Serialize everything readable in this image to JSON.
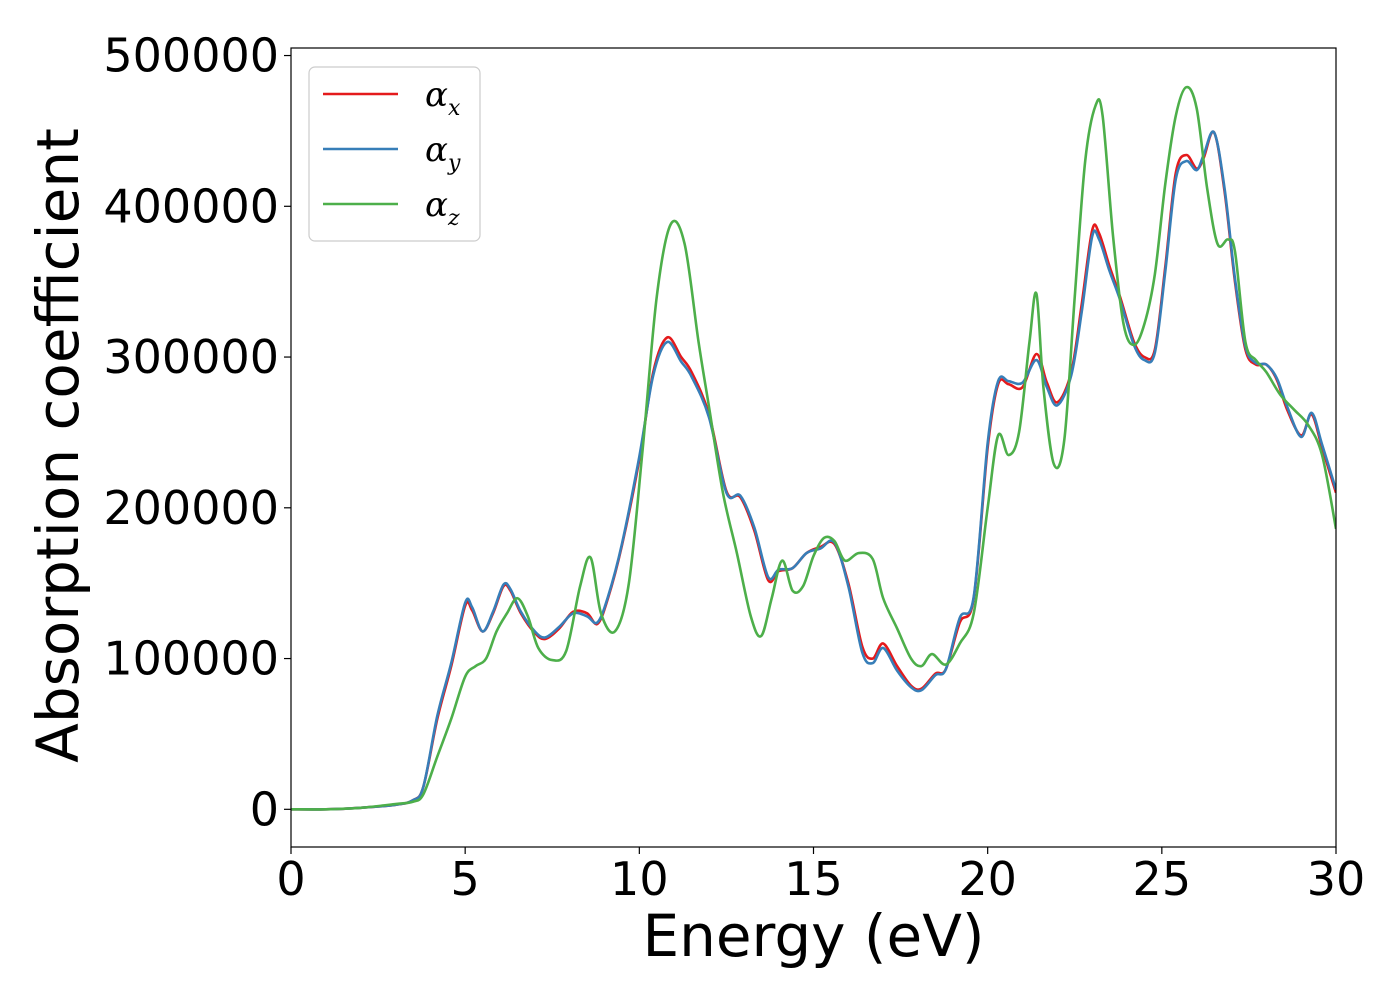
{
  "chart_data": {
    "type": "line",
    "xlabel": "Energy (eV)",
    "ylabel": "Absorption coefficient",
    "xlim": [
      0,
      30
    ],
    "ylim": [
      -25000,
      505000
    ],
    "xticks": [
      0,
      5,
      10,
      15,
      20,
      25,
      30
    ],
    "xtick_labels": [
      "0",
      "5",
      "10",
      "15",
      "20",
      "25",
      "30"
    ],
    "yticks": [
      0,
      100000,
      200000,
      300000,
      400000,
      500000
    ],
    "ytick_labels": [
      "0",
      "100000",
      "200000",
      "300000",
      "400000",
      "500000"
    ],
    "grid": false,
    "legend_position": "top-left",
    "series": [
      {
        "name": "α",
        "subscript": "x",
        "color": "#e41a1c",
        "x": [
          0,
          1,
          2,
          3,
          3.5,
          3.8,
          4.2,
          4.6,
          5,
          5.2,
          5.5,
          5.8,
          6.1,
          6.3,
          6.6,
          7,
          7.3,
          7.7,
          8.1,
          8.5,
          8.8,
          9.1,
          9.5,
          10,
          10.4,
          10.8,
          11.2,
          11.5,
          12,
          12.5,
          12.9,
          13.3,
          13.7,
          14,
          14.4,
          14.8,
          15.2,
          15.6,
          16,
          16.4,
          16.7,
          17,
          17.4,
          17.8,
          18.1,
          18.5,
          18.8,
          19.2,
          19.6,
          20,
          20.3,
          20.6,
          21,
          21.4,
          21.7,
          22,
          22.4,
          22.7,
          23,
          23.2,
          23.5,
          23.8,
          24.2,
          24.5,
          24.8,
          25.1,
          25.4,
          25.7,
          26,
          26.2,
          26.5,
          26.8,
          27.1,
          27.4,
          27.7,
          28,
          28.3,
          28.6,
          29,
          29.3,
          29.6,
          30
        ],
        "y": [
          0,
          0,
          1000,
          3000,
          6000,
          15000,
          60000,
          95000,
          135000,
          132000,
          118000,
          130000,
          148000,
          145000,
          130000,
          117000,
          113000,
          120000,
          131000,
          130000,
          123000,
          140000,
          175000,
          232000,
          290000,
          313000,
          300000,
          290000,
          262000,
          211000,
          207000,
          185000,
          152000,
          158000,
          160000,
          170000,
          174000,
          176000,
          150000,
          108000,
          100000,
          110000,
          95000,
          82000,
          80000,
          90000,
          93000,
          124000,
          140000,
          240000,
          282000,
          282000,
          280000,
          302000,
          283000,
          270000,
          290000,
          335000,
          384000,
          382000,
          360000,
          340000,
          310000,
          300000,
          305000,
          360000,
          422000,
          434000,
          425000,
          432000,
          449000,
          410000,
          350000,
          305000,
          295000,
          295000,
          285000,
          265000,
          248000,
          262000,
          240000,
          210000
        ]
      },
      {
        "name": "α",
        "subscript": "y",
        "color": "#377eb8",
        "x": [
          0,
          1,
          2,
          3,
          3.5,
          3.8,
          4.2,
          4.6,
          5,
          5.2,
          5.5,
          5.8,
          6.1,
          6.3,
          6.6,
          7,
          7.3,
          7.7,
          8.1,
          8.5,
          8.8,
          9.1,
          9.5,
          10,
          10.4,
          10.8,
          11.2,
          11.5,
          12,
          12.5,
          12.9,
          13.3,
          13.7,
          14,
          14.4,
          14.8,
          15.2,
          15.6,
          16,
          16.4,
          16.7,
          17,
          17.4,
          17.8,
          18.1,
          18.5,
          18.8,
          19.2,
          19.6,
          20,
          20.3,
          20.6,
          21,
          21.4,
          21.7,
          22,
          22.4,
          22.7,
          23,
          23.2,
          23.5,
          23.8,
          24.2,
          24.5,
          24.8,
          25.1,
          25.4,
          25.7,
          26,
          26.2,
          26.5,
          26.8,
          27.1,
          27.4,
          27.7,
          28,
          28.3,
          28.6,
          29,
          29.3,
          29.6,
          30
        ],
        "y": [
          0,
          0,
          1000,
          3000,
          6000,
          15000,
          62000,
          97000,
          137000,
          134000,
          118000,
          131000,
          149000,
          146000,
          131000,
          118000,
          114000,
          121000,
          130000,
          128000,
          124000,
          141000,
          176000,
          234000,
          288000,
          310000,
          297000,
          287000,
          260000,
          210000,
          208000,
          187000,
          154000,
          159000,
          160000,
          170000,
          173000,
          177000,
          148000,
          104000,
          97000,
          107000,
          92000,
          81000,
          79000,
          89000,
          93000,
          127000,
          141000,
          243000,
          284000,
          284000,
          283000,
          298000,
          280000,
          268000,
          288000,
          330000,
          380000,
          378000,
          357000,
          338000,
          308000,
          298000,
          303000,
          357000,
          418000,
          430000,
          424000,
          434000,
          449000,
          412000,
          352000,
          307000,
          296000,
          295000,
          286000,
          267000,
          247000,
          263000,
          242000,
          212000
        ]
      },
      {
        "name": "α",
        "subscript": "z",
        "color": "#4daf4a",
        "x": [
          0,
          1,
          2,
          3,
          3.5,
          3.8,
          4.2,
          4.6,
          5,
          5.3,
          5.6,
          5.9,
          6.2,
          6.5,
          6.8,
          7.1,
          7.5,
          7.9,
          8.3,
          8.6,
          8.9,
          9.3,
          9.7,
          10.1,
          10.5,
          10.9,
          11.3,
          11.7,
          12,
          12.4,
          12.8,
          13.2,
          13.5,
          13.8,
          14.1,
          14.4,
          14.7,
          15,
          15.3,
          15.6,
          15.9,
          16.3,
          16.7,
          17,
          17.4,
          17.8,
          18.1,
          18.4,
          18.8,
          19.2,
          19.6,
          20,
          20.3,
          20.6,
          20.9,
          21.2,
          21.4,
          21.6,
          21.9,
          22.2,
          22.5,
          22.8,
          23.1,
          23.3,
          23.6,
          23.9,
          24.2,
          24.5,
          24.8,
          25.1,
          25.4,
          25.7,
          26,
          26.3,
          26.6,
          26.9,
          27.1,
          27.4,
          27.7,
          28,
          28.4,
          28.8,
          29.2,
          29.6,
          30
        ],
        "y": [
          0,
          0,
          1000,
          3500,
          5000,
          10000,
          35000,
          60000,
          88000,
          95000,
          100000,
          118000,
          130000,
          140000,
          128000,
          107000,
          99000,
          105000,
          148000,
          167000,
          130000,
          118000,
          150000,
          240000,
          340000,
          388000,
          375000,
          310000,
          267000,
          210000,
          170000,
          128000,
          115000,
          140000,
          165000,
          145000,
          148000,
          168000,
          180000,
          178000,
          165000,
          170000,
          166000,
          140000,
          120000,
          100000,
          95000,
          103000,
          96000,
          110000,
          130000,
          200000,
          248000,
          235000,
          250000,
          310000,
          342000,
          280000,
          229000,
          245000,
          340000,
          430000,
          467000,
          460000,
          380000,
          322000,
          308000,
          322000,
          355000,
          415000,
          460000,
          479000,
          465000,
          412000,
          375000,
          378000,
          370000,
          310000,
          298000,
          290000,
          275000,
          265000,
          255000,
          235000,
          186000
        ]
      }
    ]
  }
}
